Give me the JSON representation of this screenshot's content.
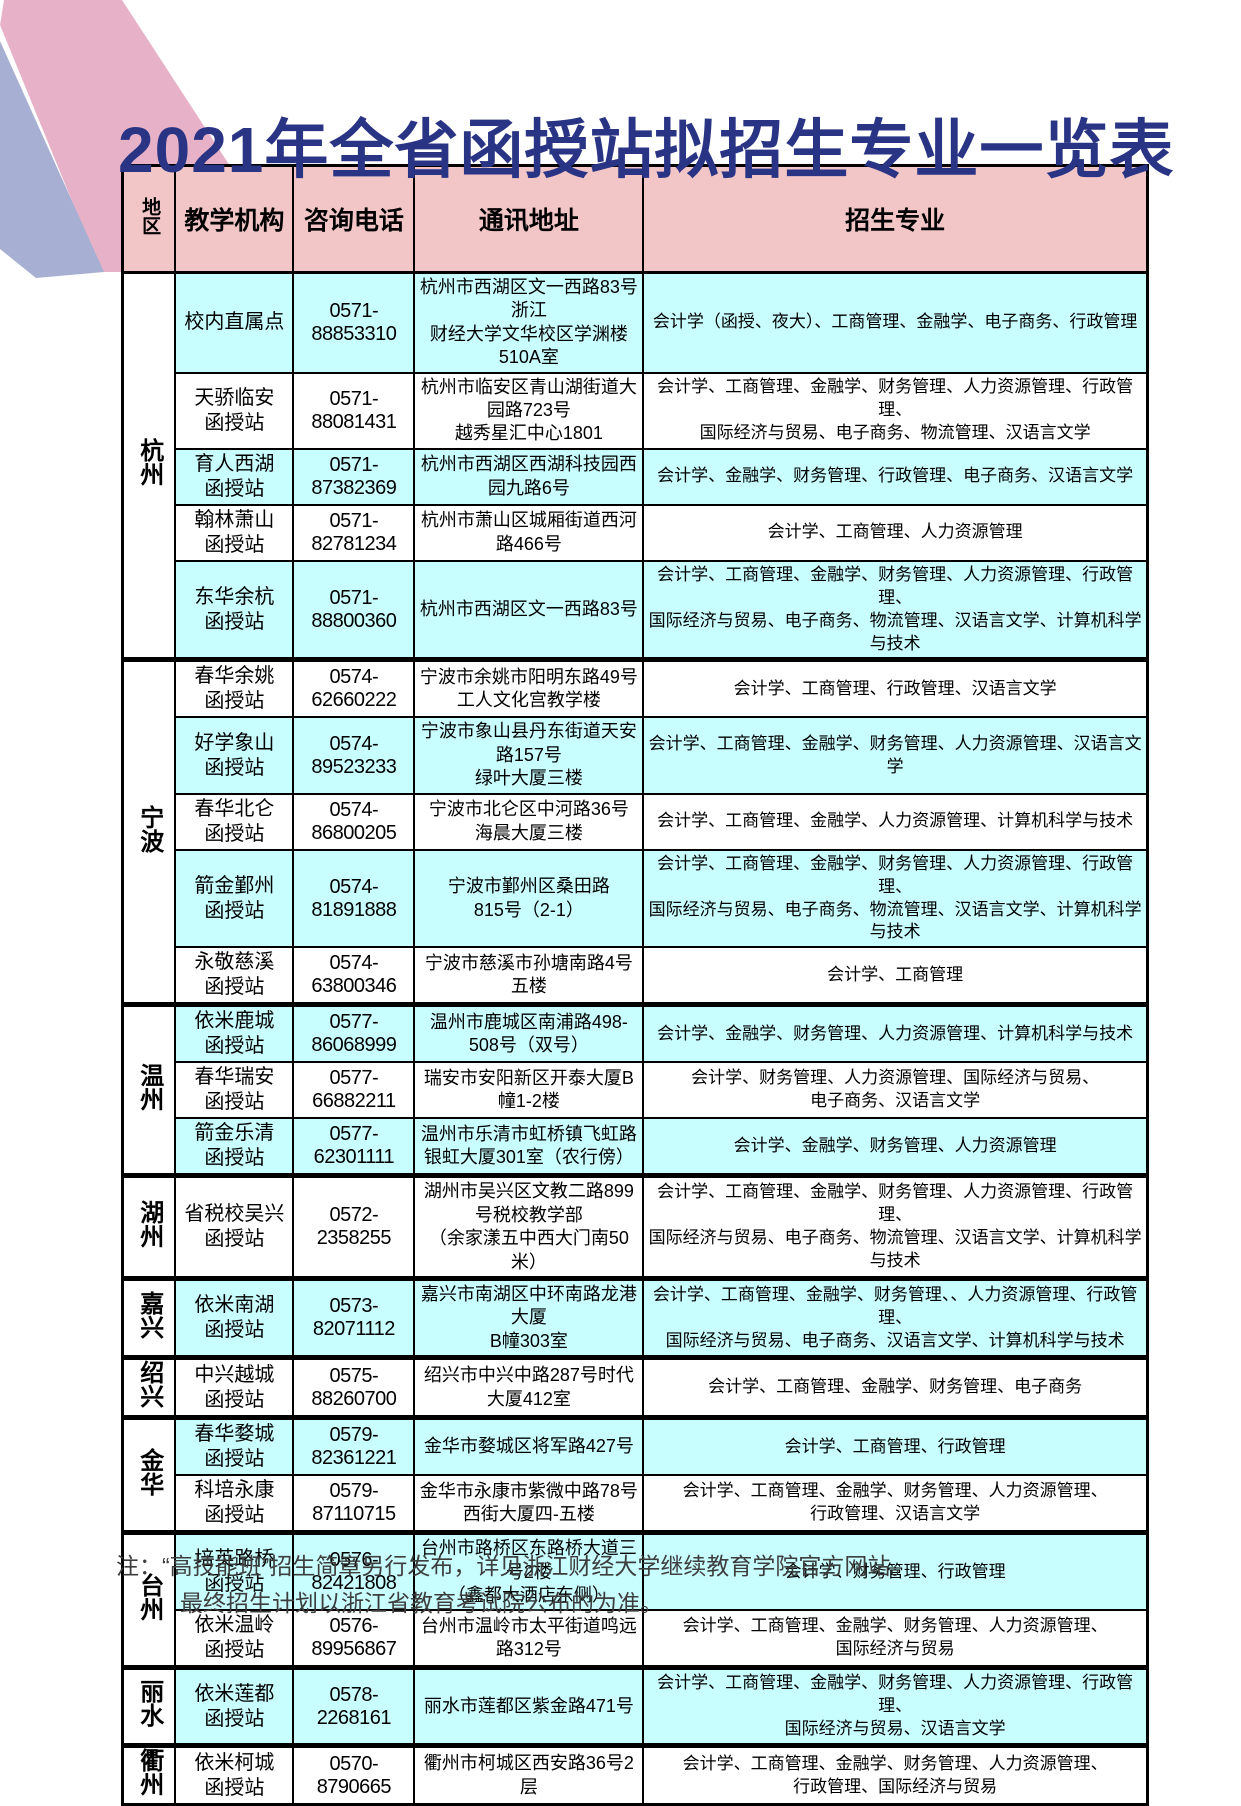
{
  "title": "2021年全省函授站拟招生专业一览表",
  "columns": [
    "地区",
    "教学机构",
    "咨询电话",
    "通讯地址",
    "招生专业"
  ],
  "regions": [
    {
      "name": "杭州",
      "rows": [
        {
          "org": [
            "校内直属点"
          ],
          "phone": "0571-88853310",
          "address": [
            "杭州市西湖区文一西路83号浙江",
            "财经大学文华校区学渊楼510A室"
          ],
          "majors": [
            "会计学（函授、夜大）、工商管理、金融学、电子商务、行政管理"
          ],
          "highlight": true
        },
        {
          "org": [
            "天骄临安",
            "函授站"
          ],
          "phone": "0571-88081431",
          "address": [
            "杭州市临安区青山湖街道大园路723号",
            "越秀星汇中心1801"
          ],
          "majors": [
            "会计学、工商管理、金融学、财务管理、人力资源管理、行政管理、",
            "国际经济与贸易、电子商务、物流管理、汉语言文学"
          ],
          "highlight": false
        },
        {
          "org": [
            "育人西湖",
            "函授站"
          ],
          "phone": "0571-87382369",
          "address": [
            "杭州市西湖区西湖科技园西园九路6号"
          ],
          "majors": [
            "会计学、金融学、财务管理、行政管理、电子商务、汉语言文学"
          ],
          "highlight": true
        },
        {
          "org": [
            "翰林萧山",
            "函授站"
          ],
          "phone": "0571-82781234",
          "address": [
            "杭州市萧山区城厢街道西河路466号"
          ],
          "majors": [
            "会计学、工商管理、人力资源管理"
          ],
          "highlight": false
        },
        {
          "org": [
            "东华余杭",
            "函授站"
          ],
          "phone": "0571-88800360",
          "address": [
            "杭州市西湖区文一西路83号"
          ],
          "majors": [
            "会计学、工商管理、金融学、财务管理、人力资源管理、行政管理、",
            "国际经济与贸易、电子商务、物流管理、汉语言文学、计算机科学与技术"
          ],
          "highlight": true
        }
      ]
    },
    {
      "name": "宁波",
      "rows": [
        {
          "org": [
            "春华余姚",
            "函授站"
          ],
          "phone": "0574-62660222",
          "address": [
            "宁波市余姚市阳明东路49号",
            "工人文化宫教学楼"
          ],
          "majors": [
            "会计学、工商管理、行政管理、汉语言文学"
          ],
          "highlight": false
        },
        {
          "org": [
            "好学象山",
            "函授站"
          ],
          "phone": "0574-89523233",
          "address": [
            "宁波市象山县丹东街道天安路157号",
            "绿叶大厦三楼"
          ],
          "majors": [
            "会计学、工商管理、金融学、财务管理、人力资源管理、汉语言文学"
          ],
          "highlight": true
        },
        {
          "org": [
            "春华北仑",
            "函授站"
          ],
          "phone": "0574-86800205",
          "address": [
            "宁波市北仑区中河路36号",
            "海晨大厦三楼"
          ],
          "majors": [
            "会计学、工商管理、金融学、人力资源管理、计算机科学与技术"
          ],
          "highlight": false
        },
        {
          "org": [
            "箭金鄞州",
            "函授站"
          ],
          "phone": "0574-81891888",
          "address": [
            "宁波市鄞州区桑田路",
            "815号（2-1）"
          ],
          "majors": [
            "会计学、工商管理、金融学、财务管理、人力资源管理、行政管理、",
            "国际经济与贸易、电子商务、物流管理、汉语言文学、计算机科学与技术"
          ],
          "highlight": true
        },
        {
          "org": [
            "永敬慈溪",
            "函授站"
          ],
          "phone": "0574-63800346",
          "address": [
            "宁波市慈溪市孙塘南路4号五楼"
          ],
          "majors": [
            "会计学、工商管理"
          ],
          "highlight": false
        }
      ]
    },
    {
      "name": "温州",
      "rows": [
        {
          "org": [
            "依米鹿城",
            "函授站"
          ],
          "phone": "0577-86068999",
          "address": [
            "温州市鹿城区南浦路498-508号（双号）"
          ],
          "majors": [
            "会计学、金融学、财务管理、人力资源管理、计算机科学与技术"
          ],
          "highlight": true
        },
        {
          "org": [
            "春华瑞安",
            "函授站"
          ],
          "phone": "0577-66882211",
          "address": [
            "瑞安市安阳新区开泰大厦B幢1-2楼"
          ],
          "majors": [
            "会计学、财务管理、人力资源管理、国际经济与贸易、",
            "电子商务、汉语言文学"
          ],
          "highlight": false
        },
        {
          "org": [
            "箭金乐清",
            "函授站"
          ],
          "phone": "0577-62301111",
          "address": [
            "温州市乐清市虹桥镇飞虹路",
            "银虹大厦301室（农行傍）"
          ],
          "majors": [
            "会计学、金融学、财务管理、人力资源管理"
          ],
          "highlight": true
        }
      ]
    },
    {
      "name": "湖州",
      "rows": [
        {
          "org": [
            "省税校吴兴",
            "函授站"
          ],
          "phone": "0572-2358255",
          "address": [
            "湖州市吴兴区文教二路899号税校教学部",
            "（余家漾五中西大门南50米）"
          ],
          "majors": [
            "会计学、工商管理、金融学、财务管理、人力资源管理、行政管理、",
            "国际经济与贸易、电子商务、物流管理、汉语言文学、计算机科学与技术"
          ],
          "highlight": false
        }
      ]
    },
    {
      "name": "嘉兴",
      "rows": [
        {
          "org": [
            "依米南湖",
            "函授站"
          ],
          "phone": "0573-82071112",
          "address": [
            "嘉兴市南湖区中环南路龙港大厦",
            "B幢303室"
          ],
          "majors": [
            "会计学、工商管理、金融学、财务管理、、人力资源管理、行政管理、",
            "国际经济与贸易、电子商务、汉语言文学、计算机科学与技术"
          ],
          "highlight": true
        }
      ]
    },
    {
      "name": "绍兴",
      "rows": [
        {
          "org": [
            "中兴越城",
            "函授站"
          ],
          "phone": "0575-88260700",
          "address": [
            "绍兴市中兴中路287号时代大厦412室"
          ],
          "majors": [
            "会计学、工商管理、金融学、财务管理、电子商务"
          ],
          "highlight": false
        }
      ]
    },
    {
      "name": "金华",
      "rows": [
        {
          "org": [
            "春华婺城",
            "函授站"
          ],
          "phone": "0579-82361221",
          "address": [
            "金华市婺城区将军路427号"
          ],
          "majors": [
            "会计学、工商管理、行政管理"
          ],
          "highlight": true
        },
        {
          "org": [
            "科培永康",
            "函授站"
          ],
          "phone": "0579-87110715",
          "address": [
            "金华市永康市紫微中路78号",
            "西街大厦四-五楼"
          ],
          "majors": [
            "会计学、工商管理、金融学、财务管理、人力资源管理、",
            "行政管理、汉语言文学"
          ],
          "highlight": false
        }
      ]
    },
    {
      "name": "台州",
      "rows": [
        {
          "org": [
            "培英路桥",
            "函授站"
          ],
          "phone": "0576-82421808",
          "address": [
            "台州市路桥区东路桥大道三号2楼",
            "（鑫都大酒店东侧）"
          ],
          "majors": [
            "会计学、财务管理、行政管理"
          ],
          "highlight": true
        },
        {
          "org": [
            "依米温岭",
            "函授站"
          ],
          "phone": "0576-89956867",
          "address": [
            "台州市温岭市太平街道鸣远路312号"
          ],
          "majors": [
            "会计学、工商管理、金融学、财务管理、人力资源管理、",
            "国际经济与贸易"
          ],
          "highlight": false
        }
      ]
    },
    {
      "name": "丽水",
      "rows": [
        {
          "org": [
            "依米莲都",
            "函授站"
          ],
          "phone": "0578-2268161",
          "address": [
            "丽水市莲都区紫金路471号"
          ],
          "majors": [
            "会计学、工商管理、金融学、财务管理、人力资源管理、行政管理、",
            "国际经济与贸易、汉语言文学"
          ],
          "highlight": true
        }
      ]
    },
    {
      "name": "衢州",
      "rows": [
        {
          "org": [
            "依米柯城",
            "函授站"
          ],
          "phone": "0570-8790665",
          "address": [
            "衢州市柯城区西安路36号2层"
          ],
          "majors": [
            "会计学、工商管理、金融学、财务管理、人力资源管理、",
            "行政管理、国际经济与贸易"
          ],
          "highlight": false
        }
      ]
    }
  ],
  "note": {
    "label": "注：",
    "line1": "“高技能班”招生简章另行发布，详见浙江财经大学继续教育学院官方网站。",
    "line2": "最终招生计划以浙江省教育考试院公布的为准。"
  },
  "colors": {
    "title_color": "#2A3484",
    "header_bg": "#F2C5C7",
    "row_highlight": "#C9FEFF",
    "stripe_pink": "#E7B2C8",
    "stripe_blue": "#A7AFD2"
  }
}
